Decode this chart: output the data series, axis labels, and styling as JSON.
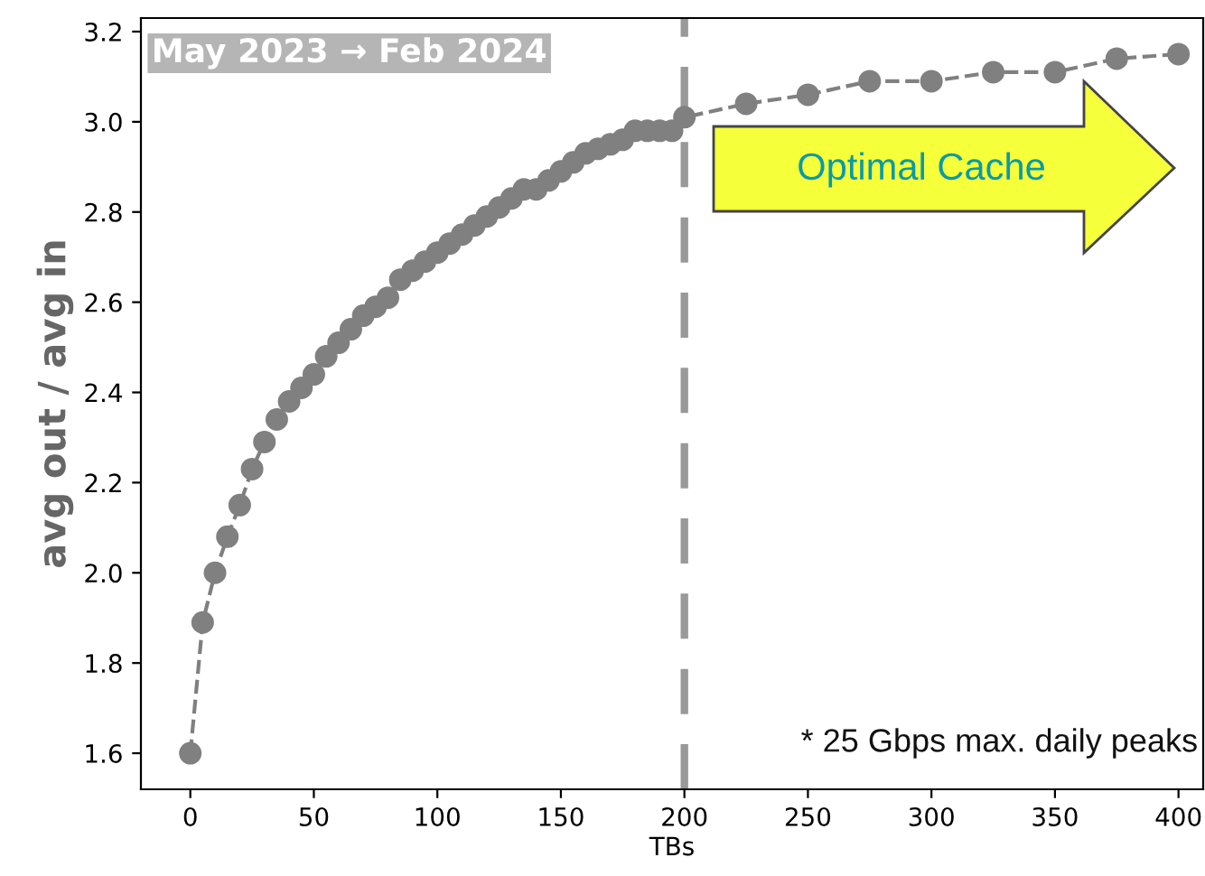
{
  "chart_data": {
    "type": "line",
    "x": [
      0,
      5,
      10,
      15,
      20,
      25,
      30,
      35,
      40,
      45,
      50,
      55,
      60,
      65,
      70,
      75,
      80,
      85,
      90,
      95,
      100,
      105,
      110,
      115,
      120,
      125,
      130,
      135,
      140,
      145,
      150,
      155,
      160,
      165,
      170,
      175,
      180,
      185,
      190,
      195,
      200,
      225,
      250,
      275,
      300,
      325,
      350,
      375,
      400
    ],
    "series": [
      {
        "color": "#808080",
        "values": [
          1.6,
          1.89,
          2.0,
          2.08,
          2.15,
          2.23,
          2.29,
          2.34,
          2.38,
          2.41,
          2.44,
          2.48,
          2.51,
          2.54,
          2.57,
          2.59,
          2.61,
          2.65,
          2.67,
          2.69,
          2.71,
          2.73,
          2.75,
          2.77,
          2.79,
          2.81,
          2.83,
          2.85,
          2.85,
          2.87,
          2.89,
          2.91,
          2.93,
          2.94,
          2.95,
          2.96,
          2.98,
          2.98,
          2.98,
          2.98,
          3.01,
          3.04,
          3.06,
          3.09,
          3.09,
          3.11,
          3.11,
          3.14,
          3.15
        ]
      }
    ],
    "marker": "circle",
    "line_style": "dashed",
    "xlabel": "TBs",
    "ylabel": "avg out / avg in",
    "xlim": [
      -20,
      410
    ],
    "ylim": [
      1.52,
      3.23
    ],
    "xticks": [
      0,
      50,
      100,
      150,
      200,
      250,
      300,
      350,
      400
    ],
    "yticks": [
      1.6,
      1.8,
      {
        "value": 2,
        "label": "2.0"
      },
      2.2,
      2.4,
      2.6,
      2.8,
      {
        "value": 3,
        "label": "3.0"
      },
      3.2
    ],
    "ref_lines": [
      {
        "axis": "x",
        "value": 200,
        "color": "#999999",
        "line_style": "dashed"
      }
    ],
    "annotations": [
      "May 2023 → Feb 2024",
      "Optimal Cache",
      "* 25 Gbps max. daily peaks"
    ],
    "grid": false,
    "legend": false
  }
}
